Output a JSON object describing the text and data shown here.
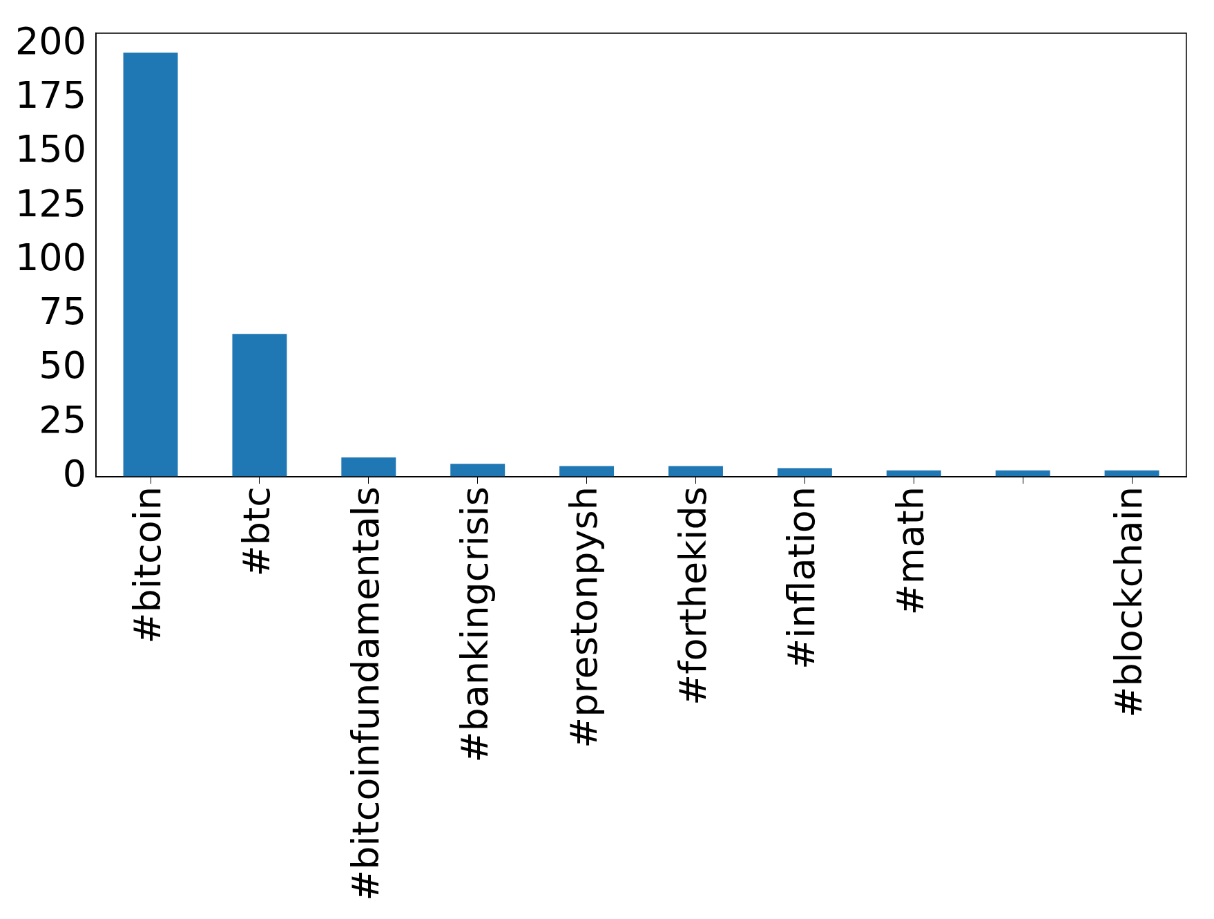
{
  "chart_data": {
    "type": "bar",
    "categories": [
      "#bitcoin",
      "#btc",
      "#bitcoinfundamentals",
      "#bankingcrisis",
      "#prestonpysh",
      "#forthekids",
      "#inflation",
      "#math",
      null,
      "#blockchain"
    ],
    "values": [
      196,
      66,
      9,
      6,
      5,
      5,
      4,
      3,
      3,
      3
    ],
    "color": "#1f77b4",
    "ylim": [
      0,
      205
    ],
    "yticks": [
      0,
      25,
      50,
      75,
      100,
      125,
      150,
      175,
      200
    ],
    "grid": false,
    "legend": false
  }
}
